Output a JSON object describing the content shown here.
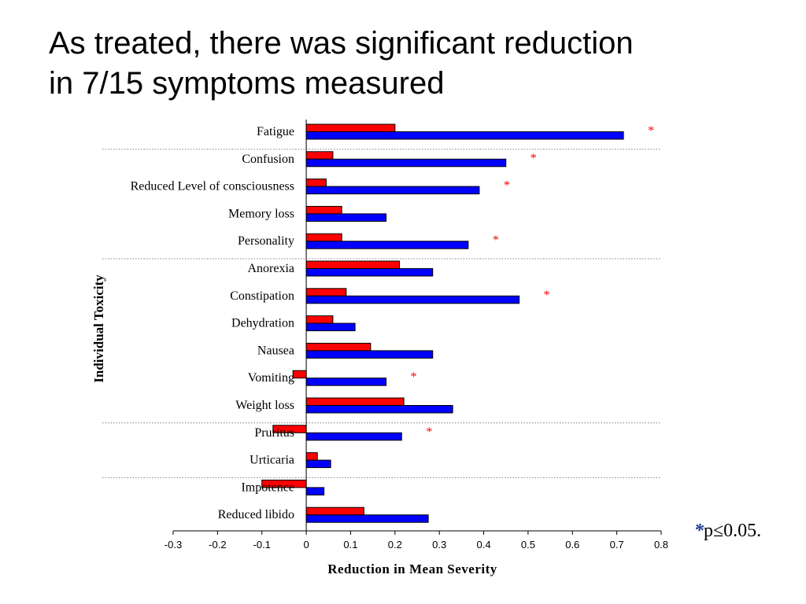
{
  "slide": {
    "title_lines": [
      "As treated, there was significant reduction",
      "in 7/15 symptoms measured"
    ]
  },
  "footnote": {
    "star": "*",
    "text": "p≤0.05."
  },
  "colors": {
    "series_a": "#ff0000",
    "series_b": "#0000ff",
    "significance": "#ff0000",
    "footnote_star": "#1f3a93"
  },
  "chart_data": {
    "type": "bar",
    "orientation": "horizontal",
    "categories": [
      "Fatigue",
      "Confusion",
      "Reduced Level of consciousness",
      "Memory loss",
      "Personality",
      "Anorexia",
      "Constipation",
      "Dehydration",
      "Nausea",
      "Vomiting",
      "Weight loss",
      "Pruritus",
      "Urticaria",
      "Impotence",
      "Reduced libido"
    ],
    "series": [
      {
        "color": "#ff0000",
        "values": [
          0.2,
          0.06,
          0.045,
          0.08,
          0.08,
          0.21,
          0.09,
          0.06,
          0.145,
          -0.03,
          0.22,
          -0.075,
          0.025,
          -0.1,
          0.13
        ]
      },
      {
        "color": "#0000ff",
        "values": [
          0.715,
          0.45,
          0.39,
          0.18,
          0.365,
          0.285,
          0.48,
          0.11,
          0.285,
          0.18,
          0.33,
          0.215,
          0.055,
          0.04,
          0.275
        ]
      }
    ],
    "significance_marker": "*",
    "significant": [
      true,
      true,
      true,
      false,
      true,
      false,
      true,
      false,
      false,
      true,
      false,
      true,
      false,
      false,
      false
    ],
    "xlabel": "Reduction in Mean Severity",
    "ylabel": "Individual Toxicity",
    "xlim": [
      -0.3,
      0.8
    ],
    "xticks": [
      "-0.3",
      "-0.2",
      "-0.1",
      "0",
      "0.1",
      "0.2",
      "0.3",
      "0.4",
      "0.5",
      "0.6",
      "0.7",
      "0.8"
    ],
    "group_separators_after": [
      "Fatigue",
      "Personality",
      "Weight loss",
      "Urticaria"
    ]
  }
}
